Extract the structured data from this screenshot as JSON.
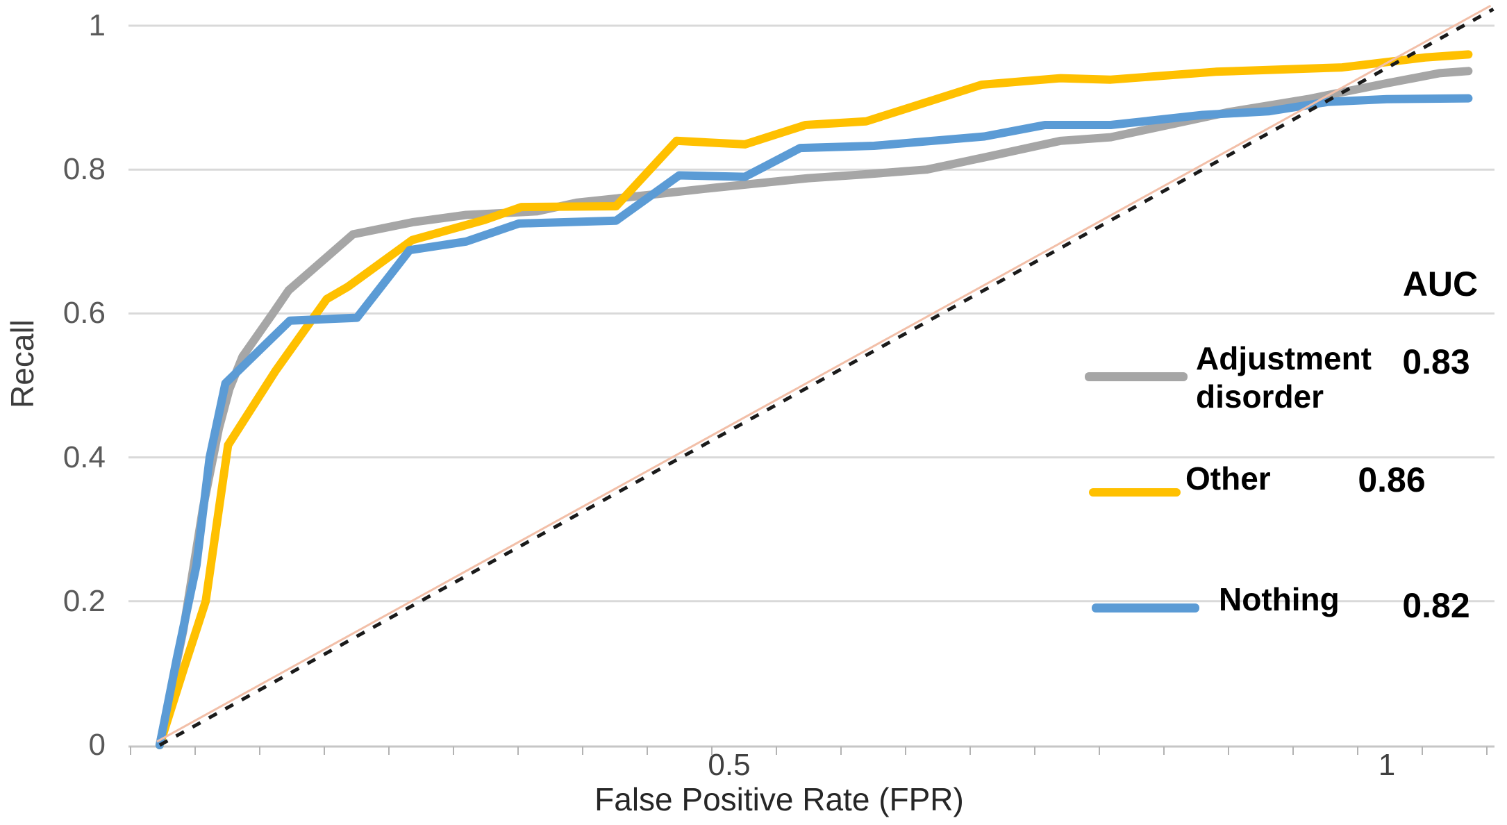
{
  "chart_data": {
    "type": "line",
    "title": "",
    "xlabel": "False Positive Rate (FPR)",
    "ylabel": "Recall",
    "xlim": [
      0,
      1.08
    ],
    "ylim": [
      0,
      1
    ],
    "grid": "horizontal",
    "x_ticks": [
      {
        "label": "0.5",
        "value": 0.5
      },
      {
        "label": "1",
        "value": 1.0
      }
    ],
    "y_ticks": [
      {
        "label": "0",
        "value": 0.0
      },
      {
        "label": "0.2",
        "value": 0.2
      },
      {
        "label": "0.4",
        "value": 0.4
      },
      {
        "label": "0.6",
        "value": 0.6
      },
      {
        "label": "0.8",
        "value": 0.8
      },
      {
        "label": "1",
        "value": 1.0
      }
    ],
    "legend": {
      "header": "AUC",
      "position": "right"
    },
    "series": [
      {
        "name": "Adjustment disorder",
        "auc": "0.83",
        "color": "#a6a6a6",
        "points": [
          [
            0.067,
            0.0
          ],
          [
            0.085,
            0.16
          ],
          [
            0.1,
            0.33
          ],
          [
            0.112,
            0.44
          ],
          [
            0.12,
            0.495
          ],
          [
            0.13,
            0.54
          ],
          [
            0.153,
            0.6
          ],
          [
            0.165,
            0.632
          ],
          [
            0.214,
            0.71
          ],
          [
            0.26,
            0.727
          ],
          [
            0.3,
            0.737
          ],
          [
            0.354,
            0.742
          ],
          [
            0.384,
            0.754
          ],
          [
            0.44,
            0.765
          ],
          [
            0.49,
            0.775
          ],
          [
            0.56,
            0.788
          ],
          [
            0.6,
            0.793
          ],
          [
            0.65,
            0.8
          ],
          [
            0.694,
            0.817
          ],
          [
            0.752,
            0.84
          ],
          [
            0.79,
            0.845
          ],
          [
            0.88,
            0.88
          ],
          [
            0.94,
            0.898
          ],
          [
            1.0,
            0.92
          ],
          [
            1.04,
            0.934
          ],
          [
            1.062,
            0.937
          ]
        ]
      },
      {
        "name": "Other",
        "auc": "0.86",
        "color": "#ffc000",
        "points": [
          [
            0.067,
            0.0
          ],
          [
            0.086,
            0.11
          ],
          [
            0.102,
            0.2
          ],
          [
            0.119,
            0.417
          ],
          [
            0.155,
            0.52
          ],
          [
            0.194,
            0.62
          ],
          [
            0.21,
            0.637
          ],
          [
            0.259,
            0.702
          ],
          [
            0.314,
            0.73
          ],
          [
            0.342,
            0.748
          ],
          [
            0.414,
            0.749
          ],
          [
            0.46,
            0.84
          ],
          [
            0.512,
            0.835
          ],
          [
            0.558,
            0.862
          ],
          [
            0.604,
            0.867
          ],
          [
            0.692,
            0.918
          ],
          [
            0.752,
            0.927
          ],
          [
            0.79,
            0.925
          ],
          [
            0.87,
            0.936
          ],
          [
            0.966,
            0.942
          ],
          [
            1.03,
            0.956
          ],
          [
            1.062,
            0.96
          ]
        ]
      },
      {
        "name": "Nothing",
        "auc": "0.82",
        "color": "#5b9bd5",
        "points": [
          [
            0.067,
            0.0
          ],
          [
            0.08,
            0.12
          ],
          [
            0.095,
            0.25
          ],
          [
            0.105,
            0.4
          ],
          [
            0.117,
            0.503
          ],
          [
            0.166,
            0.59
          ],
          [
            0.217,
            0.594
          ],
          [
            0.257,
            0.688
          ],
          [
            0.3,
            0.7
          ],
          [
            0.34,
            0.725
          ],
          [
            0.414,
            0.729
          ],
          [
            0.462,
            0.792
          ],
          [
            0.512,
            0.79
          ],
          [
            0.554,
            0.83
          ],
          [
            0.61,
            0.833
          ],
          [
            0.694,
            0.846
          ],
          [
            0.74,
            0.862
          ],
          [
            0.79,
            0.862
          ],
          [
            0.86,
            0.876
          ],
          [
            0.91,
            0.881
          ],
          [
            0.955,
            0.894
          ],
          [
            1.0,
            0.898
          ],
          [
            1.062,
            0.899
          ]
        ]
      }
    ],
    "reference_line": {
      "name": "chance diagonal",
      "style": "dashed",
      "color": "#1a1a1a",
      "underlay_color": "#f2bfa8",
      "from": [
        0.067,
        0.0
      ],
      "to": [
        1.081,
        1.023
      ]
    }
  }
}
